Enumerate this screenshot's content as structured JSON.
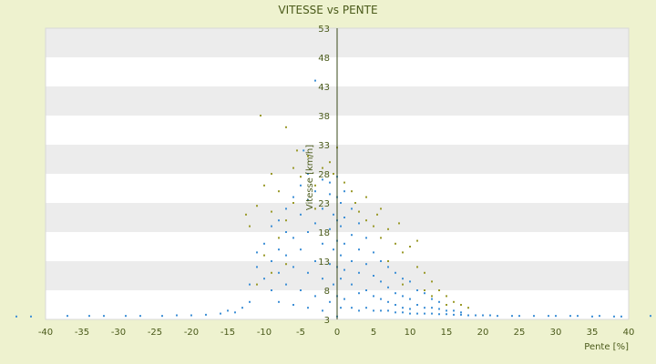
{
  "chart_data": {
    "type": "scatter",
    "title": "VITESSE vs PENTE",
    "xlabel": "Pente [%]",
    "ylabel": "Vitesse [km/h]",
    "xlim": [
      -40,
      40
    ],
    "ylim": [
      3,
      53
    ],
    "x_ticks": [
      -40,
      -35,
      -30,
      -25,
      -20,
      -15,
      -10,
      -5,
      0,
      5,
      10,
      15,
      20,
      25,
      30,
      35,
      40
    ],
    "y_ticks": [
      3,
      8,
      13,
      18,
      23,
      28,
      33,
      38,
      43,
      48,
      53
    ],
    "grid": "horizontal alternating bands",
    "colors": {
      "plot_bg": "#ffffff",
      "band": "#ececec",
      "page_bg": "#eef2cf",
      "series_1": "#3d8fd6",
      "series_2": "#9a9a2a",
      "axis": "#3a4a1a"
    },
    "series": [
      {
        "color": "#3d8fd6",
        "points": [
          [
            -44,
            3.5
          ],
          [
            -42,
            3.5
          ],
          [
            -37,
            3.6
          ],
          [
            -34,
            3.6
          ],
          [
            -32,
            3.6
          ],
          [
            -29,
            3.6
          ],
          [
            -27,
            3.6
          ],
          [
            -24,
            3.6
          ],
          [
            -22,
            3.7
          ],
          [
            -20,
            3.7
          ],
          [
            -18,
            3.8
          ],
          [
            -16,
            4.0
          ],
          [
            -15,
            4.5
          ],
          [
            -14,
            4.2
          ],
          [
            -13,
            5.0
          ],
          [
            -12,
            6.0
          ],
          [
            -12,
            9.0
          ],
          [
            -11,
            12.0
          ],
          [
            -11,
            14.5
          ],
          [
            -10,
            10.0
          ],
          [
            -10,
            16.0
          ],
          [
            -9,
            8.0
          ],
          [
            -9,
            13.0
          ],
          [
            -9,
            19.0
          ],
          [
            -8,
            6.0
          ],
          [
            -8,
            11.0
          ],
          [
            -8,
            15.0
          ],
          [
            -8,
            20.0
          ],
          [
            -7,
            9.0
          ],
          [
            -7,
            14.0
          ],
          [
            -7,
            18.0
          ],
          [
            -7,
            22.0
          ],
          [
            -6,
            5.5
          ],
          [
            -6,
            12.0
          ],
          [
            -6,
            17.0
          ],
          [
            -6,
            24.0
          ],
          [
            -5,
            8.0
          ],
          [
            -5,
            15.0
          ],
          [
            -5,
            21.0
          ],
          [
            -5,
            26.0
          ],
          [
            -4.6,
            32.0
          ],
          [
            -4,
            5.0
          ],
          [
            -4,
            11.0
          ],
          [
            -4,
            18.0
          ],
          [
            -4,
            23.5
          ],
          [
            -4,
            28.0
          ],
          [
            -3,
            7.0
          ],
          [
            -3,
            13.0
          ],
          [
            -3,
            19.5
          ],
          [
            -3,
            25.0
          ],
          [
            -3,
            44.0
          ],
          [
            -2,
            4.5
          ],
          [
            -2,
            10.0
          ],
          [
            -2,
            16.0
          ],
          [
            -2,
            22.0
          ],
          [
            -2,
            27.0
          ],
          [
            -1,
            6.0
          ],
          [
            -1,
            12.5
          ],
          [
            -1,
            18.5
          ],
          [
            -1,
            24.5
          ],
          [
            -1,
            26.5
          ],
          [
            -0.5,
            9.0
          ],
          [
            -0.5,
            15.0
          ],
          [
            -0.5,
            21.0
          ],
          [
            0,
            3.5
          ],
          [
            0,
            7.0
          ],
          [
            0,
            12.0
          ],
          [
            0,
            16.5
          ],
          [
            0,
            20.0
          ],
          [
            0,
            24.0
          ],
          [
            0,
            27.5
          ],
          [
            0.5,
            5.0
          ],
          [
            0.5,
            10.0
          ],
          [
            0.5,
            14.0
          ],
          [
            0.5,
            19.0
          ],
          [
            0.5,
            23.0
          ],
          [
            1,
            6.5
          ],
          [
            1,
            11.5
          ],
          [
            1,
            16.0
          ],
          [
            1,
            20.5
          ],
          [
            1,
            25.0
          ],
          [
            2,
            5.0
          ],
          [
            2,
            9.0
          ],
          [
            2,
            13.0
          ],
          [
            2,
            17.5
          ],
          [
            2,
            22.0
          ],
          [
            3,
            4.5
          ],
          [
            3,
            7.5
          ],
          [
            3,
            11.0
          ],
          [
            3,
            15.0
          ],
          [
            3,
            19.5
          ],
          [
            4,
            5.0
          ],
          [
            4,
            8.0
          ],
          [
            4,
            12.5
          ],
          [
            4,
            17.0
          ],
          [
            5,
            4.5
          ],
          [
            5,
            7.0
          ],
          [
            5,
            10.5
          ],
          [
            5,
            14.5
          ],
          [
            6,
            4.5
          ],
          [
            6,
            6.5
          ],
          [
            6,
            9.5
          ],
          [
            6,
            13.0
          ],
          [
            7,
            4.5
          ],
          [
            7,
            6.0
          ],
          [
            7,
            8.5
          ],
          [
            7,
            12.0
          ],
          [
            8,
            4.2
          ],
          [
            8,
            5.5
          ],
          [
            8,
            7.5
          ],
          [
            8,
            11.0
          ],
          [
            9,
            4.2
          ],
          [
            9,
            5.0
          ],
          [
            9,
            7.0
          ],
          [
            9,
            10.0
          ],
          [
            10,
            4.0
          ],
          [
            10,
            4.8
          ],
          [
            10,
            6.5
          ],
          [
            10,
            9.5
          ],
          [
            11,
            4.0
          ],
          [
            11,
            5.5
          ],
          [
            11,
            8.0
          ],
          [
            12,
            4.0
          ],
          [
            12,
            5.0
          ],
          [
            12,
            7.5
          ],
          [
            13,
            4.0
          ],
          [
            13,
            5.0
          ],
          [
            13,
            6.5
          ],
          [
            14,
            3.9
          ],
          [
            14,
            4.8
          ],
          [
            14,
            6.0
          ],
          [
            15,
            3.9
          ],
          [
            15,
            4.5
          ],
          [
            16,
            3.8
          ],
          [
            16,
            4.5
          ],
          [
            17,
            3.8
          ],
          [
            17,
            4.2
          ],
          [
            18,
            3.7
          ],
          [
            19,
            3.7
          ],
          [
            20,
            3.7
          ],
          [
            21,
            3.7
          ],
          [
            22,
            3.6
          ],
          [
            24,
            3.6
          ],
          [
            25,
            3.6
          ],
          [
            27,
            3.6
          ],
          [
            29,
            3.6
          ],
          [
            30,
            3.6
          ],
          [
            32,
            3.6
          ],
          [
            33,
            3.6
          ],
          [
            35,
            3.5
          ],
          [
            36,
            3.6
          ],
          [
            38,
            3.5
          ],
          [
            39,
            3.5
          ],
          [
            43,
            3.6
          ]
        ]
      },
      {
        "color": "#9a9a2a",
        "points": [
          [
            -10.5,
            38.0
          ],
          [
            -7,
            36.0
          ],
          [
            -5.5,
            32.0
          ],
          [
            -9,
            28.0
          ],
          [
            -10,
            26.0
          ],
          [
            -11,
            22.5
          ],
          [
            -12,
            19.0
          ],
          [
            -12.5,
            21.0
          ],
          [
            -8,
            25.0
          ],
          [
            -9,
            21.5
          ],
          [
            -6,
            29.0
          ],
          [
            -4,
            31.0
          ],
          [
            -5,
            27.5
          ],
          [
            -7,
            20.0
          ],
          [
            -10,
            14.0
          ],
          [
            -11,
            9.0
          ],
          [
            -6,
            23.0
          ],
          [
            -3,
            26.0
          ],
          [
            -2,
            29.0
          ],
          [
            -1,
            30.0
          ],
          [
            0,
            32.5
          ],
          [
            -0.5,
            28.0
          ],
          [
            1,
            26.5
          ],
          [
            2,
            25.0
          ],
          [
            2.5,
            23.0
          ],
          [
            3,
            21.5
          ],
          [
            4,
            20.0
          ],
          [
            5,
            19.0
          ],
          [
            5.5,
            21.0
          ],
          [
            6,
            17.0
          ],
          [
            7,
            18.5
          ],
          [
            8,
            16.0
          ],
          [
            8.5,
            19.5
          ],
          [
            9,
            14.5
          ],
          [
            10,
            15.5
          ],
          [
            11,
            12.0
          ],
          [
            12,
            11.0
          ],
          [
            13,
            9.5
          ],
          [
            14,
            8.0
          ],
          [
            15,
            7.0
          ],
          [
            16,
            6.0
          ],
          [
            17,
            5.5
          ],
          [
            18,
            5.0
          ],
          [
            11,
            16.5
          ],
          [
            7,
            13.0
          ],
          [
            9,
            9.0
          ],
          [
            12,
            8.0
          ],
          [
            4,
            24.0
          ],
          [
            6,
            22.0
          ],
          [
            -3,
            22.0
          ],
          [
            -8,
            17.0
          ],
          [
            -9,
            11.0
          ],
          [
            -7,
            12.5
          ],
          [
            13,
            7.0
          ],
          [
            15,
            5.5
          ]
        ]
      }
    ]
  }
}
